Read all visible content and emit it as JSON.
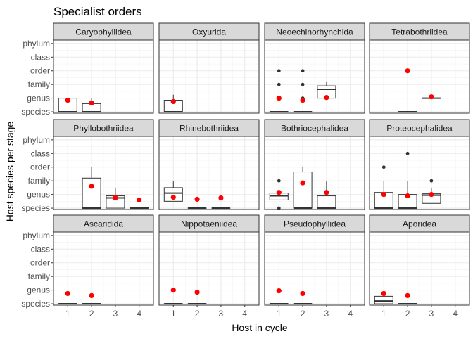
{
  "chart_data": {
    "type": "boxplot",
    "title": "Specialist orders",
    "xlabel": "Host in cycle",
    "ylabel": "Host species per stage",
    "x_ticks": [
      "1",
      "2",
      "3",
      "4"
    ],
    "y_ticks": [
      "species",
      "genus",
      "family",
      "order",
      "class",
      "phylum"
    ],
    "ylim": [
      0.9,
      6.25
    ],
    "colors": {
      "mean_point": "#ff0000",
      "outlier": "#333333",
      "strip_fill": "#d9d9d9",
      "box_line": "#333333"
    },
    "facets": [
      {
        "name": "Caryophyllidea",
        "groups": [
          {
            "x": 1,
            "box": [
              1,
              1,
              1,
              2,
              2
            ],
            "mean": 1.85,
            "outliers": []
          },
          {
            "x": 2,
            "box": [
              1,
              1,
              1,
              1.6,
              2
            ],
            "mean": 1.65,
            "outliers": []
          }
        ]
      },
      {
        "name": "Oxyurida",
        "groups": [
          {
            "x": 1,
            "box": [
              1,
              1,
              1,
              1.85,
              2.25
            ],
            "mean": 1.75,
            "outliers": []
          }
        ]
      },
      {
        "name": "Neoechinorhynchida",
        "groups": [
          {
            "x": 1,
            "box": [
              1,
              1,
              1,
              1,
              1
            ],
            "mean": 2.0,
            "outliers": [
              2,
              3,
              4
            ]
          },
          {
            "x": 2,
            "box": [
              1,
              1,
              1,
              1,
              1
            ],
            "mean": 1.85,
            "outliers": [
              2,
              3,
              4
            ]
          },
          {
            "x": 3,
            "box": [
              2,
              2,
              2.65,
              2.9,
              3.2
            ],
            "mean": 2.05,
            "outliers": []
          }
        ]
      },
      {
        "name": "Tetrabothriidea",
        "groups": [
          {
            "x": 2,
            "box": [
              1,
              1,
              1,
              1,
              1
            ],
            "mean": 4.0,
            "outliers": []
          },
          {
            "x": 3,
            "box": [
              2,
              2,
              2,
              2,
              2
            ],
            "mean": 2.1,
            "outliers": []
          }
        ]
      },
      {
        "name": "Phyllobothriidea",
        "groups": [
          {
            "x": 2,
            "box": [
              1,
              1,
              1,
              3.2,
              4
            ],
            "mean": 2.6,
            "outliers": []
          },
          {
            "x": 3,
            "box": [
              1,
              1,
              1.75,
              1.9,
              2.5
            ],
            "mean": 1.75,
            "outliers": []
          },
          {
            "x": 4,
            "box": [
              1,
              1,
              1,
              1.05,
              1.1
            ],
            "mean": 1.6,
            "outliers": []
          }
        ]
      },
      {
        "name": "Rhinebothriidea",
        "groups": [
          {
            "x": 1,
            "box": [
              1.5,
              1.5,
              2.1,
              2.5,
              3
            ],
            "mean": 1.8,
            "outliers": []
          },
          {
            "x": 2,
            "box": [
              1,
              1,
              1,
              1,
              1
            ],
            "mean": 1.65,
            "outliers": []
          },
          {
            "x": 3,
            "box": [
              1,
              1,
              1,
              1,
              1
            ],
            "mean": 1.75,
            "outliers": []
          }
        ]
      },
      {
        "name": "Bothriocephalidea",
        "groups": [
          {
            "x": 1,
            "box": [
              1.6,
              1.6,
              1.9,
              2.1,
              2.3
            ],
            "mean": 2.15,
            "outliers": [
              1,
              3
            ]
          },
          {
            "x": 2,
            "box": [
              1,
              1,
              1,
              3.65,
              4
            ],
            "mean": 2.85,
            "outliers": []
          },
          {
            "x": 3,
            "box": [
              1,
              1,
              1,
              1.9,
              3
            ],
            "mean": 2.15,
            "outliers": []
          }
        ]
      },
      {
        "name": "Proteocephalidea",
        "groups": [
          {
            "x": 1,
            "box": [
              1,
              1,
              1,
              2.15,
              3
            ],
            "mean": 2.0,
            "outliers": [
              4
            ]
          },
          {
            "x": 2,
            "box": [
              1,
              1,
              1,
              2,
              3
            ],
            "mean": 1.9,
            "outliers": [
              5
            ]
          },
          {
            "x": 3,
            "box": [
              1.35,
              1.35,
              1.95,
              2.05,
              2.5
            ],
            "mean": 2.0,
            "outliers": [
              3
            ]
          }
        ]
      },
      {
        "name": "Ascaridida",
        "groups": [
          {
            "x": 1,
            "box": [
              1,
              1,
              1,
              1,
              1
            ],
            "mean": 1.75,
            "outliers": []
          },
          {
            "x": 2,
            "box": [
              1,
              1,
              1,
              1,
              1
            ],
            "mean": 1.6,
            "outliers": []
          }
        ]
      },
      {
        "name": "Nippotaeniidea",
        "groups": [
          {
            "x": 1,
            "box": [
              1,
              1,
              1,
              1,
              1
            ],
            "mean": 2.0,
            "outliers": []
          },
          {
            "x": 2,
            "box": [
              1,
              1,
              1,
              1,
              1
            ],
            "mean": 1.85,
            "outliers": []
          }
        ]
      },
      {
        "name": "Pseudophyllidea",
        "groups": [
          {
            "x": 1,
            "box": [
              1,
              1,
              1,
              1,
              1
            ],
            "mean": 1.95,
            "outliers": []
          },
          {
            "x": 2,
            "box": [
              1,
              1,
              1,
              1,
              1
            ],
            "mean": 1.75,
            "outliers": []
          }
        ]
      },
      {
        "name": "Aporidea",
        "groups": [
          {
            "x": 1,
            "box": [
              1,
              1,
              1.2,
              1.55,
              1.8
            ],
            "mean": 1.75,
            "outliers": []
          },
          {
            "x": 2,
            "box": [
              1,
              1,
              1,
              1,
              1
            ],
            "mean": 1.6,
            "outliers": []
          }
        ]
      }
    ]
  }
}
